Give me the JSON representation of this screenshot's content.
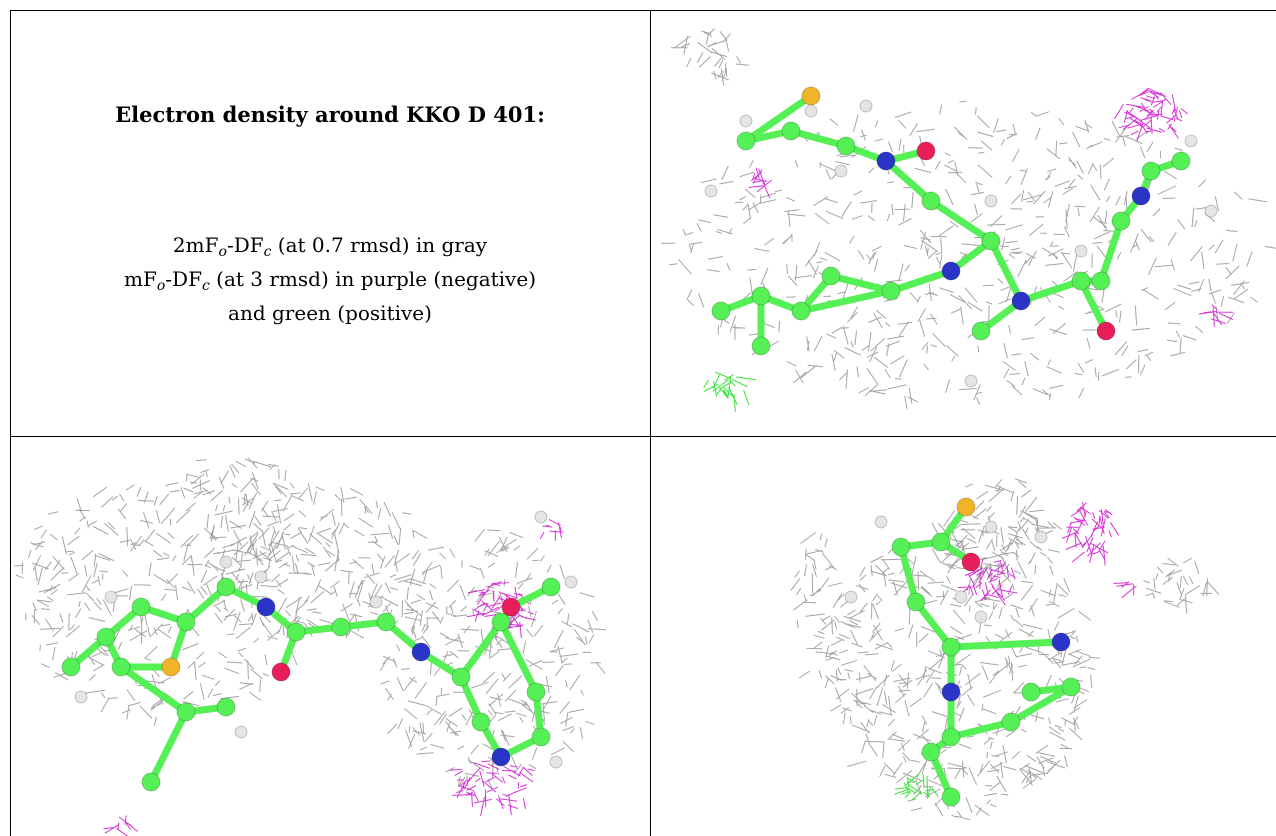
{
  "caption": {
    "title": "Electron density around KKO D 401:",
    "line1": {
      "a": "2mF",
      "b": "o",
      "c": "-DF",
      "d": "c",
      "e": " (at 0.7 rmsd) in gray"
    },
    "line2": {
      "a": "mF",
      "b": "o",
      "c": "-DF",
      "d": "c",
      "e": " (at 3 rmsd) in purple (negative)"
    },
    "line3": "and green (positive)"
  },
  "colors": {
    "mesh_2fofc": "#9a9a9a",
    "mesh_negative": "#d21ed2",
    "mesh_positive": "#22e022",
    "carbon": "#55f055",
    "nitrogen": "#2a35c8",
    "oxygen": "#e81e5a",
    "sulfur": "#f0b428",
    "hydrogen": "#e4e4e4"
  }
}
